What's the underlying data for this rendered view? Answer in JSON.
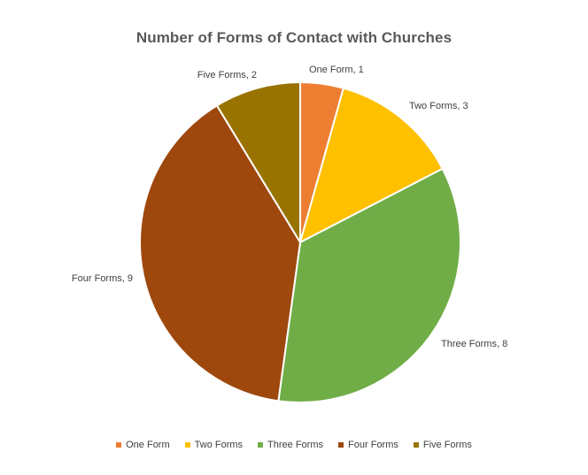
{
  "chart_data": {
    "type": "pie",
    "title": "Number of Forms of Contact with Churches",
    "categories": [
      "One Form",
      "Two Forms",
      "Three Forms",
      "Four Forms",
      "Five Forms"
    ],
    "values": [
      1,
      3,
      8,
      9,
      2
    ],
    "data_labels": [
      "One Form, 1",
      "Two Forms, 3",
      "Three Forms, 8",
      "Four Forms, 9",
      "Five Forms, 2"
    ],
    "colors": [
      "#ED7D31",
      "#FFC000",
      "#70AD47",
      "#9E480E",
      "#997300"
    ],
    "legend_position": "bottom"
  }
}
